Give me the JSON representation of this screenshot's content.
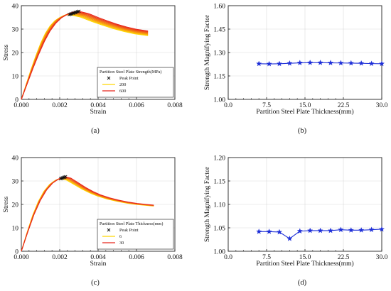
{
  "chart_data": [
    {
      "panel": "(a)",
      "type": "line",
      "xlabel": "Strain",
      "ylabel": "Stress",
      "xlim": [
        0,
        0.008
      ],
      "ylim": [
        0,
        40
      ],
      "xticks": [
        "0.000",
        "0.002",
        "0.004",
        "0.006",
        "0.008"
      ],
      "yticks": [
        "0",
        "10",
        "20",
        "30",
        "40"
      ],
      "grid": true,
      "legend": {
        "title": "Partition Steel Plate Strength(MPa)",
        "placement": "bottom-right",
        "entries": [
          {
            "label": "Peak Point",
            "marker": "x",
            "color": "#111111"
          },
          {
            "label": "200",
            "color": "#ffd700"
          },
          {
            "label": "600",
            "color": "#e8281e"
          }
        ]
      },
      "family": {
        "count": 9,
        "color_from": "#ffd700",
        "color_to": "#e8281e",
        "peak_strain": [
          0.0025,
          0.003
        ],
        "peak_stress": [
          36.2,
          37.6
        ],
        "end_strain": 0.0066,
        "end_stress": [
          27.2,
          29.2
        ]
      },
      "series_template": [
        [
          0,
          0
        ],
        [
          0.0003,
          6.5
        ],
        [
          0.0006,
          13
        ],
        [
          0.0009,
          19
        ],
        [
          0.0012,
          24.5
        ],
        [
          0.0015,
          29
        ],
        [
          0.0018,
          32.3
        ],
        [
          0.0021,
          34.6
        ],
        [
          0.0024,
          36
        ],
        [
          0.0027,
          37
        ],
        [
          0.003,
          37.3
        ],
        [
          0.0035,
          36.2
        ],
        [
          0.004,
          34.3
        ],
        [
          0.0045,
          32.6
        ],
        [
          0.005,
          31
        ],
        [
          0.0055,
          29.7
        ],
        [
          0.006,
          28.6
        ],
        [
          0.0066,
          27.8
        ]
      ]
    },
    {
      "panel": "(b)",
      "type": "line",
      "xlabel": "Partition Steel Plate Thickness(mm)",
      "ylabel": "Strength Magnifying Factor",
      "xlim": [
        0,
        30
      ],
      "ylim": [
        1.0,
        1.6
      ],
      "xticks": [
        "0.0",
        "7.5",
        "15.0",
        "22.5",
        "30.0"
      ],
      "yticks": [
        "1.00",
        "1.15",
        "1.30",
        "1.45",
        "1.60"
      ],
      "grid": true,
      "marker": "star",
      "color": "#1e2fd8",
      "x": [
        6,
        8,
        10,
        12,
        14,
        16,
        18,
        20,
        22,
        24,
        26,
        28,
        30
      ],
      "y": [
        1.228,
        1.227,
        1.228,
        1.231,
        1.234,
        1.235,
        1.235,
        1.234,
        1.233,
        1.232,
        1.231,
        1.229,
        1.228
      ]
    },
    {
      "panel": "(c)",
      "type": "line",
      "xlabel": "Strain",
      "ylabel": "Stress",
      "xlim": [
        0,
        0.008
      ],
      "ylim": [
        0,
        40
      ],
      "xticks": [
        "0.000",
        "0.002",
        "0.004",
        "0.006",
        "0.008"
      ],
      "yticks": [
        "0",
        "10",
        "20",
        "30",
        "40"
      ],
      "grid": true,
      "legend": {
        "title": "Partition Steel Plate Thickness(mm)",
        "placement": "bottom-right",
        "entries": [
          {
            "label": "Peak Point",
            "marker": "x",
            "color": "#111111"
          },
          {
            "label": "6",
            "color": "#ffd700"
          },
          {
            "label": "30",
            "color": "#e8281e"
          }
        ]
      },
      "family": {
        "count": 6,
        "color_from": "#ffd700",
        "color_to": "#e8281e",
        "peak_strain": [
          0.00205,
          0.0023
        ],
        "peak_stress": [
          31.0,
          31.8
        ],
        "end_strain": 0.0069,
        "end_stress": [
          19.3,
          19.7
        ]
      },
      "series_template": [
        [
          0,
          0
        ],
        [
          0.0003,
          8
        ],
        [
          0.0006,
          15.5
        ],
        [
          0.0009,
          21.5
        ],
        [
          0.0012,
          26
        ],
        [
          0.0015,
          29
        ],
        [
          0.0018,
          30.8
        ],
        [
          0.0021,
          31.6
        ],
        [
          0.0024,
          31
        ],
        [
          0.0028,
          29
        ],
        [
          0.0032,
          27
        ],
        [
          0.0036,
          25.3
        ],
        [
          0.004,
          23.9
        ],
        [
          0.0045,
          22.6
        ],
        [
          0.005,
          21.6
        ],
        [
          0.0055,
          20.8
        ],
        [
          0.006,
          20.2
        ],
        [
          0.0065,
          19.8
        ],
        [
          0.0069,
          19.5
        ]
      ]
    },
    {
      "panel": "(d)",
      "type": "line",
      "xlabel": "Partition Steel Plate Thickness(mm)",
      "ylabel": "Strength Magnifying Factor",
      "xlim": [
        0,
        30
      ],
      "ylim": [
        1.0,
        1.2
      ],
      "xticks": [
        "0.0",
        "7.5",
        "15.0",
        "22.5",
        "30.0"
      ],
      "yticks": [
        "1.00",
        "1.05",
        "1.10",
        "1.15",
        "1.20"
      ],
      "grid": true,
      "marker": "star",
      "color": "#1e2fd8",
      "x": [
        6,
        8,
        10,
        12,
        14,
        16,
        18,
        20,
        22,
        24,
        26,
        28,
        30
      ],
      "y": [
        1.042,
        1.042,
        1.041,
        1.027,
        1.043,
        1.044,
        1.044,
        1.044,
        1.046,
        1.045,
        1.045,
        1.046,
        1.047
      ]
    }
  ]
}
